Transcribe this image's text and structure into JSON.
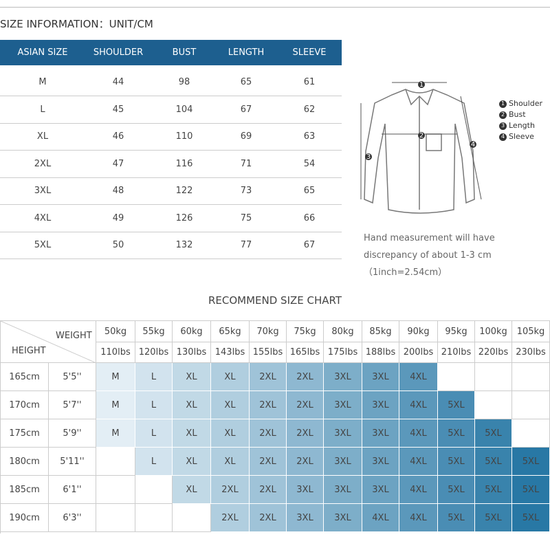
{
  "header": {
    "title": "SIZE INFORMATION：UNIT/CM"
  },
  "size_table": {
    "columns": [
      "ASIAN SIZE",
      "SHOULDER",
      "BUST",
      "LENGTH",
      "SLEEVE"
    ],
    "rows": [
      [
        "M",
        44,
        98,
        65,
        61
      ],
      [
        "L",
        45,
        104,
        67,
        62
      ],
      [
        "XL",
        46,
        110,
        69,
        63
      ],
      [
        "2XL",
        47,
        116,
        71,
        54
      ],
      [
        "3XL",
        48,
        122,
        73,
        65
      ],
      [
        "4XL",
        49,
        126,
        75,
        66
      ],
      [
        "5XL",
        50,
        132,
        77,
        67
      ]
    ]
  },
  "diagram": {
    "legend": [
      {
        "number": "1",
        "label": "Shoulder"
      },
      {
        "number": "2",
        "label": "Bust"
      },
      {
        "number": "3",
        "label": "Length"
      },
      {
        "number": "4",
        "label": "Sleeve"
      }
    ],
    "note": "Hand measurement will have discrepancy of about 1-3 cm（1inch=2.54cm）"
  },
  "recommend": {
    "title": "RECOMMEND SIZE CHART",
    "weight_label": "WEIGHT",
    "height_label": "HEIGHT",
    "kg": [
      "50kg",
      "55kg",
      "60kg",
      "65kg",
      "70kg",
      "75kg",
      "80kg",
      "85kg",
      "90kg",
      "95kg",
      "100kg",
      "105kg"
    ],
    "lbs": [
      "110lbs",
      "120lbs",
      "130lbs",
      "143lbs",
      "155lbs",
      "165lbs",
      "175lbs",
      "188lbs",
      "200lbs",
      "210lbs",
      "220lbs",
      "230lbs"
    ],
    "rows": [
      {
        "cm": "165cm",
        "ft": "5'5''",
        "sizes": [
          "M",
          "L",
          "XL",
          "XL",
          "2XL",
          "2XL",
          "3XL",
          "3XL",
          "4XL",
          null,
          null,
          null
        ]
      },
      {
        "cm": "170cm",
        "ft": "5'7''",
        "sizes": [
          "M",
          "L",
          "XL",
          "XL",
          "2XL",
          "2XL",
          "3XL",
          "3XL",
          "4XL",
          "5XL",
          null,
          null
        ]
      },
      {
        "cm": "175cm",
        "ft": "5'9''",
        "sizes": [
          "M",
          "L",
          "XL",
          "XL",
          "2XL",
          "2XL",
          "3XL",
          "3XL",
          "4XL",
          "5XL",
          "5XL",
          null
        ]
      },
      {
        "cm": "180cm",
        "ft": "5'11''",
        "sizes": [
          null,
          "L",
          "XL",
          "XL",
          "2XL",
          "2XL",
          "3XL",
          "3XL",
          "4XL",
          "5XL",
          "5XL",
          "5XL"
        ]
      },
      {
        "cm": "185cm",
        "ft": "6'1''",
        "sizes": [
          null,
          null,
          "XL",
          "2XL",
          "2XL",
          "3XL",
          "3XL",
          "3XL",
          "4XL",
          "5XL",
          "5XL",
          "5XL"
        ]
      },
      {
        "cm": "190cm",
        "ft": "6'3''",
        "sizes": [
          null,
          null,
          null,
          "2XL",
          "2XL",
          "3XL",
          "3XL",
          "4XL",
          "4XL",
          "5XL",
          "5XL",
          "5XL"
        ]
      }
    ]
  }
}
